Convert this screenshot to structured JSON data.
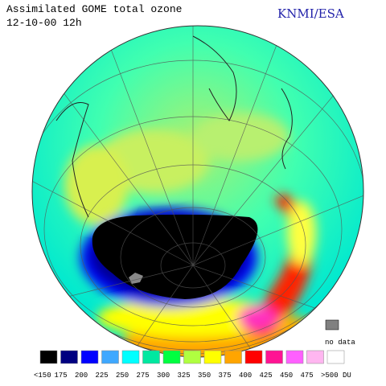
{
  "header": {
    "title": "Assimilated GOME total ozone",
    "date": "12-10-00 12h",
    "credit": "KNMI/ESA"
  },
  "legend": {
    "items": [
      {
        "label": "<150",
        "color": "#000000"
      },
      {
        "label": "175",
        "color": "#000080"
      },
      {
        "label": "200",
        "color": "#0000ff"
      },
      {
        "label": "225",
        "color": "#3fa8ff"
      },
      {
        "label": "250",
        "color": "#00ffff"
      },
      {
        "label": "275",
        "color": "#00e8a0"
      },
      {
        "label": "300",
        "color": "#00ff40"
      },
      {
        "label": "325",
        "color": "#b0ff40"
      },
      {
        "label": "350",
        "color": "#ffff00"
      },
      {
        "label": "375",
        "color": "#ffa500"
      },
      {
        "label": "400",
        "color": "#ff0000"
      },
      {
        "label": "425",
        "color": "#ff1493"
      },
      {
        "label": "450",
        "color": "#ff60ff"
      },
      {
        "label": "475",
        "color": "#ffb6f0"
      },
      {
        "label": ">500 DU",
        "color": "#ffffff"
      }
    ],
    "no_data_label": "no data",
    "no_data_color": "#808080"
  }
}
